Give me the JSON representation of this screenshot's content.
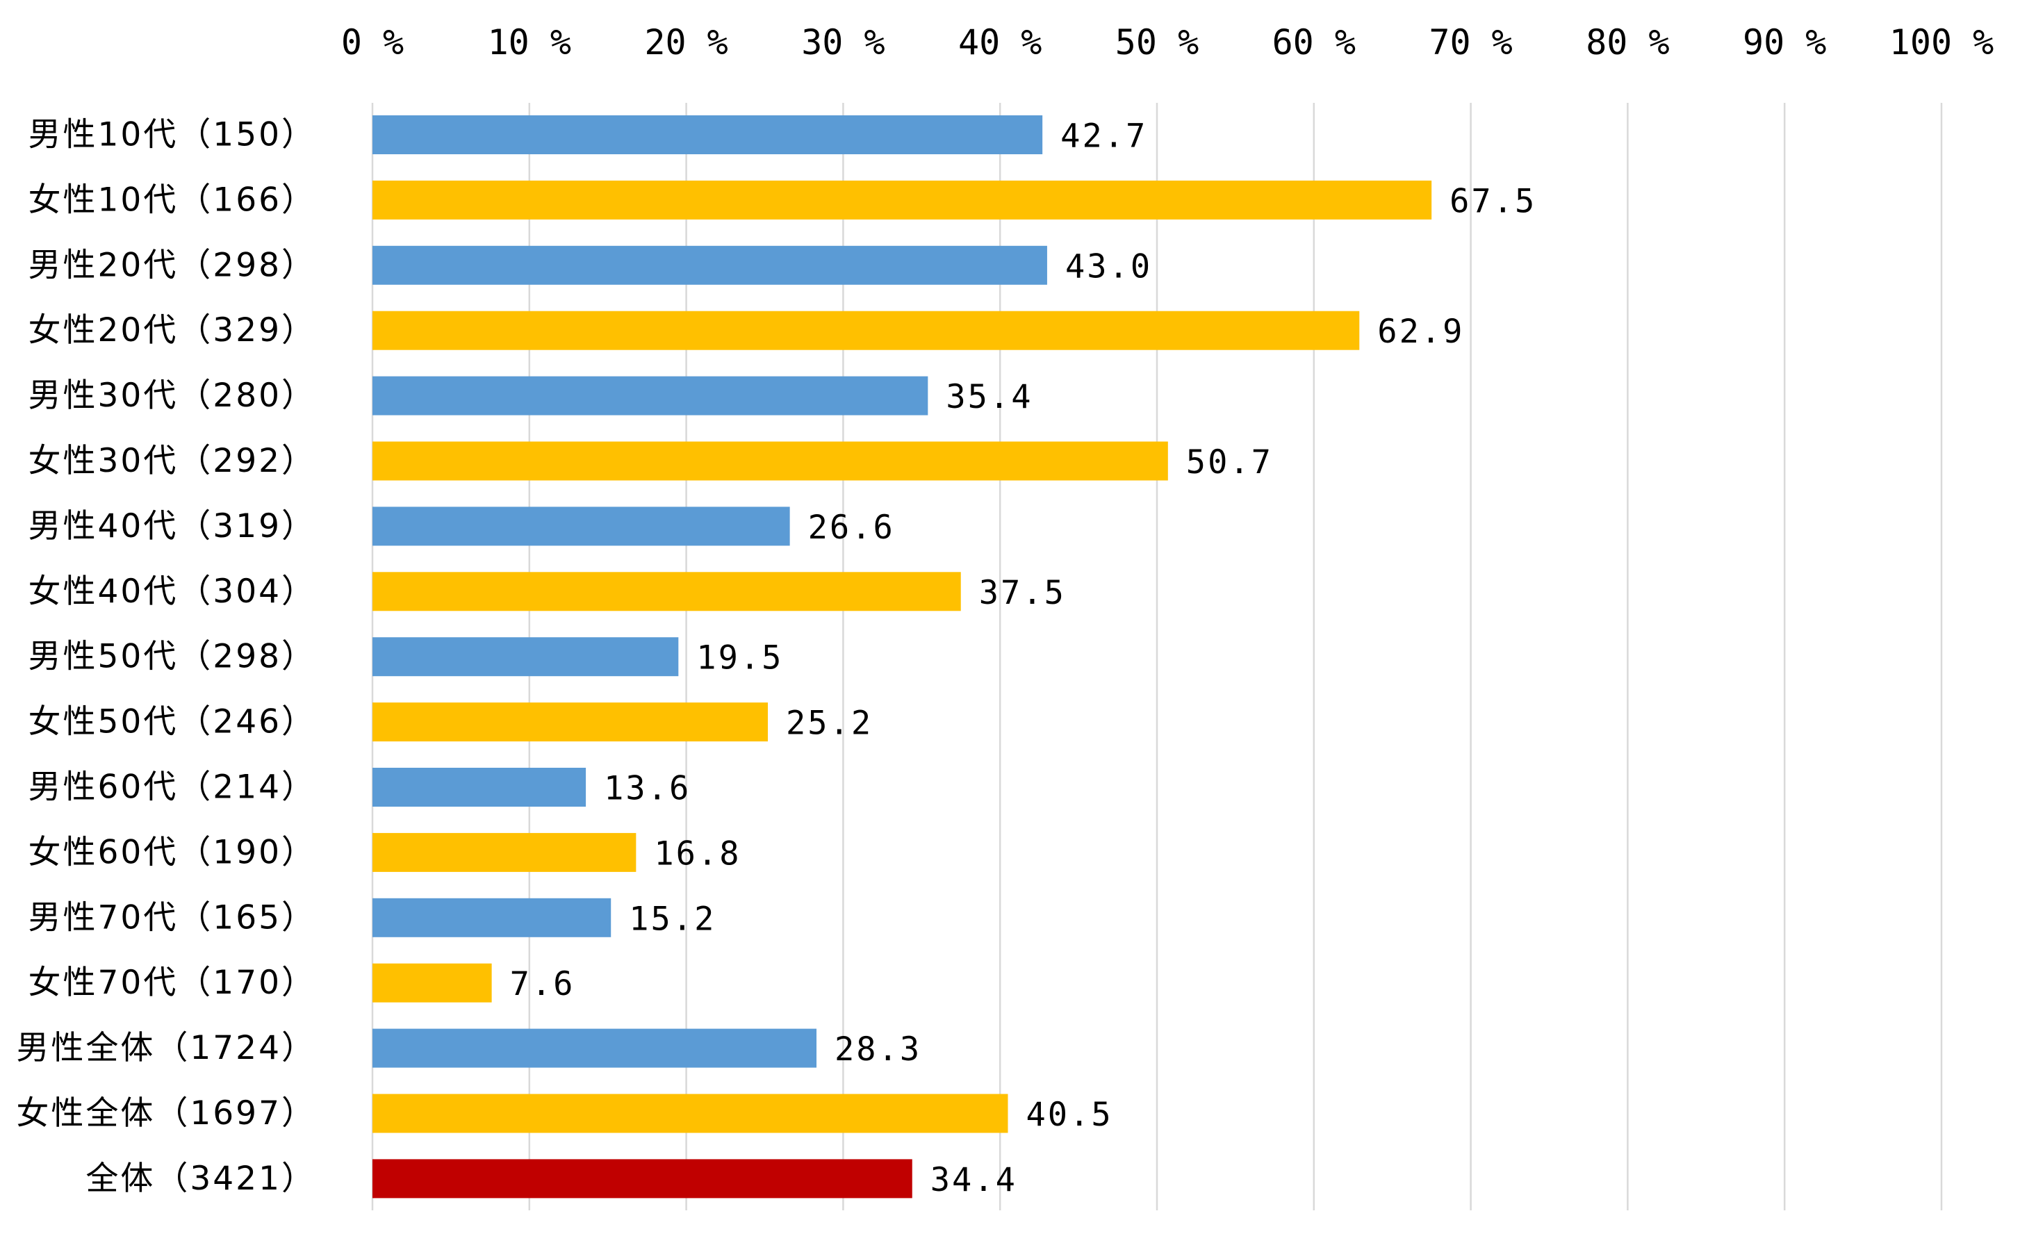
{
  "chart_data": {
    "type": "bar",
    "orientation": "horizontal",
    "categories": [
      "男性10代（150）",
      "女性10代（166）",
      "男性20代（298）",
      "女性20代（329）",
      "男性30代（280）",
      "女性30代（292）",
      "男性40代（319）",
      "女性40代（304）",
      "男性50代（298）",
      "女性50代（246）",
      "男性60代（214）",
      "女性60代（190）",
      "男性70代（165）",
      "女性70代（170）",
      "男性全体（1724）",
      "女性全体（1697）",
      "全体（3421）"
    ],
    "values": [
      42.7,
      67.5,
      43.0,
      62.9,
      35.4,
      50.7,
      26.6,
      37.5,
      19.5,
      25.2,
      13.6,
      16.8,
      15.2,
      7.6,
      28.3,
      40.5,
      34.4
    ],
    "value_labels": [
      "42.7",
      "67.5",
      "43.0",
      "62.9",
      "35.4",
      "50.7",
      "26.6",
      "37.5",
      "19.5",
      "25.2",
      "13.6",
      "16.8",
      "15.2",
      "7.6",
      "28.3",
      "40.5",
      "34.4"
    ],
    "bar_colors": [
      "#5b9bd5",
      "#ffc000",
      "#5b9bd5",
      "#ffc000",
      "#5b9bd5",
      "#ffc000",
      "#5b9bd5",
      "#ffc000",
      "#5b9bd5",
      "#ffc000",
      "#5b9bd5",
      "#ffc000",
      "#5b9bd5",
      "#ffc000",
      "#5b9bd5",
      "#ffc000",
      "#c00000"
    ],
    "x_ticks": [
      0,
      10,
      20,
      30,
      40,
      50,
      60,
      70,
      80,
      90,
      100
    ],
    "x_tick_labels": [
      "0 %",
      "10 %",
      "20 %",
      "30 %",
      "40 %",
      "50 %",
      "60 %",
      "70 %",
      "80 %",
      "90 %",
      "100 %"
    ],
    "xlim": [
      0,
      100
    ],
    "axis_position": "top",
    "grid": true,
    "legend": false
  }
}
